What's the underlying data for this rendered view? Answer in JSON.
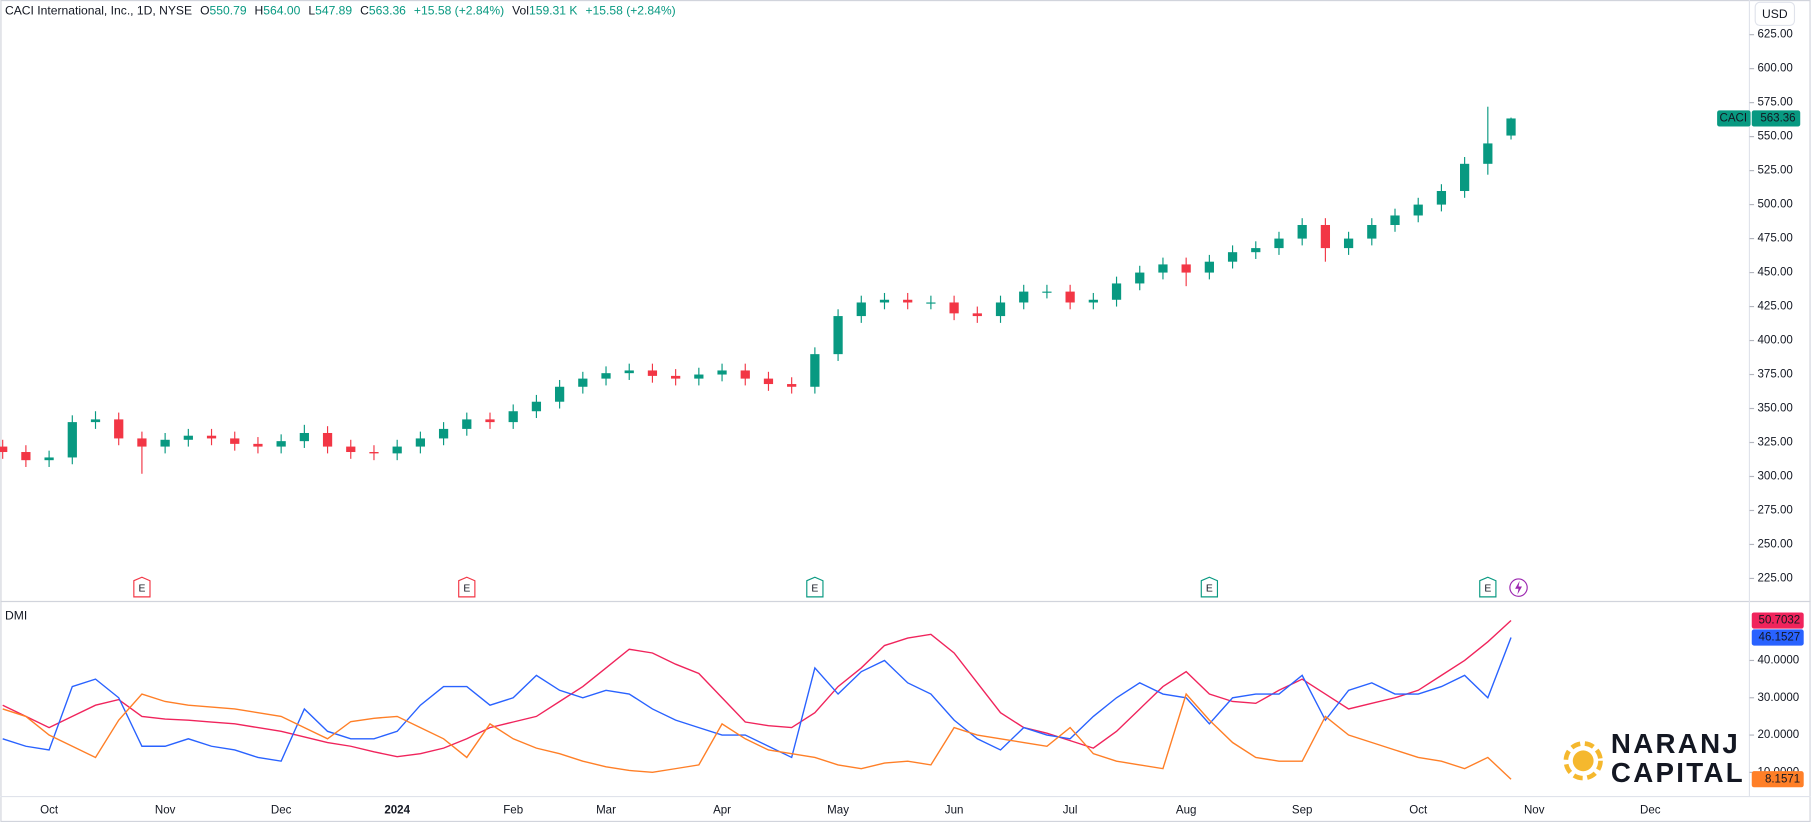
{
  "chart_data": [
    {
      "type": "candlestick",
      "title": "CACI International, Inc., 1D, NYSE",
      "quote": [
        {
          "label": "O",
          "value": "550.79"
        },
        {
          "label": "H",
          "value": "564.00"
        },
        {
          "label": "L",
          "value": "547.89"
        },
        {
          "label": "C",
          "value": "563.36"
        }
      ],
      "change": "+15.58 (+2.84%)",
      "volume_label": "Vol",
      "volume": "159.31 K",
      "volume_change": "+15.58 (+2.84%)",
      "currency": "USD",
      "symbol": "CACI",
      "up_color": "#089981",
      "down_color": "#f23645",
      "categories": [
        null,
        null,
        "Oct",
        null,
        null,
        null,
        null,
        "Nov",
        null,
        null,
        null,
        null,
        "Dec",
        null,
        null,
        null,
        null,
        "2024",
        null,
        null,
        null,
        null,
        "Feb",
        null,
        null,
        null,
        "Mar",
        null,
        null,
        null,
        null,
        "Apr",
        null,
        null,
        null,
        null,
        "May",
        null,
        null,
        null,
        null,
        "Jun",
        null,
        null,
        null,
        null,
        "Jul",
        null,
        null,
        null,
        null,
        "Aug",
        null,
        null,
        null,
        null,
        "Sep",
        null,
        null,
        null,
        null,
        "Oct",
        null,
        null,
        null,
        null,
        "Nov",
        null,
        null,
        null,
        null,
        "Dec",
        null,
        null,
        null
      ],
      "open": [
        322,
        318,
        312,
        314,
        340,
        342,
        328,
        322,
        327,
        330,
        328,
        324,
        322,
        326,
        332,
        322,
        318,
        317,
        322,
        328,
        335,
        342,
        340,
        348,
        355,
        366,
        372,
        376,
        378,
        374,
        372,
        375,
        378,
        372,
        368,
        366,
        390,
        418,
        428,
        430,
        428,
        428,
        420,
        418,
        428,
        436,
        436,
        428,
        430,
        442,
        450,
        456,
        450,
        458,
        465,
        468,
        475,
        485,
        468,
        475,
        485,
        492,
        500,
        510,
        530,
        550.79,
        null,
        null,
        null,
        null,
        null,
        null,
        null,
        null,
        null
      ],
      "high": [
        327,
        323,
        319,
        345,
        348,
        347,
        333,
        332,
        335,
        335,
        333,
        329,
        331,
        338,
        337,
        327,
        323,
        327,
        333,
        340,
        347,
        347,
        353,
        360,
        371,
        377,
        381,
        383,
        383,
        379,
        380,
        383,
        383,
        377,
        373,
        395,
        423,
        433,
        435,
        435,
        433,
        433,
        425,
        433,
        441,
        441,
        441,
        435,
        447,
        455,
        461,
        461,
        463,
        470,
        473,
        480,
        490,
        490,
        480,
        490,
        497,
        505,
        515,
        535,
        572,
        564,
        null,
        null,
        null,
        null,
        null,
        null,
        null,
        null,
        null
      ],
      "low": [
        313,
        307,
        307,
        309,
        335,
        323,
        302,
        317,
        322,
        323,
        319,
        317,
        317,
        321,
        317,
        313,
        312,
        312,
        317,
        323,
        330,
        335,
        335,
        343,
        350,
        361,
        367,
        371,
        369,
        367,
        367,
        370,
        367,
        363,
        361,
        361,
        385,
        413,
        423,
        423,
        423,
        415,
        413,
        413,
        423,
        431,
        423,
        423,
        425,
        437,
        445,
        440,
        445,
        453,
        460,
        463,
        470,
        458,
        463,
        470,
        480,
        487,
        495,
        505,
        522,
        547.89,
        null,
        null,
        null,
        null,
        null,
        null,
        null,
        null,
        null
      ],
      "close": [
        318,
        312,
        314,
        340,
        342,
        328,
        322,
        327,
        330,
        328,
        324,
        322,
        326,
        332,
        322,
        318,
        317,
        322,
        328,
        335,
        342,
        340,
        348,
        355,
        366,
        372,
        376,
        378,
        374,
        372,
        375,
        378,
        372,
        368,
        366,
        390,
        418,
        428,
        430,
        428,
        428,
        420,
        418,
        428,
        436,
        436,
        428,
        430,
        442,
        450,
        456,
        450,
        458,
        465,
        468,
        475,
        485,
        468,
        475,
        485,
        492,
        500,
        510,
        530,
        545,
        563.36,
        null,
        null,
        null,
        null,
        null,
        null,
        null,
        null,
        null
      ],
      "ylim": [
        208.9,
        650.5
      ],
      "yticks": [
        {
          "value": 225,
          "label": "225.00"
        },
        {
          "value": 250,
          "label": "250.00"
        },
        {
          "value": 275,
          "label": "275.00"
        },
        {
          "value": 300,
          "label": "300.00"
        },
        {
          "value": 325,
          "label": "325.00"
        },
        {
          "value": 350,
          "label": "350.00"
        },
        {
          "value": 375,
          "label": "375.00"
        },
        {
          "value": 400,
          "label": "400.00"
        },
        {
          "value": 425,
          "label": "425.00"
        },
        {
          "value": 450,
          "label": "450.00"
        },
        {
          "value": 475,
          "label": "475.00"
        },
        {
          "value": 500,
          "label": "500.00"
        },
        {
          "value": 525,
          "label": "525.00"
        },
        {
          "value": 550,
          "label": "550.00"
        },
        {
          "value": 575,
          "label": "575.00"
        },
        {
          "value": 600,
          "label": "600.00"
        },
        {
          "value": 625,
          "label": "625.00"
        }
      ],
      "grid": false,
      "events": {
        "x": [
          6,
          20,
          35,
          52,
          64
        ],
        "labels": [
          "E",
          "E",
          "E",
          "E",
          "E"
        ],
        "colors": [
          "#f23645",
          "#f23645",
          "#089981",
          "#089981",
          "#089981"
        ]
      }
    },
    {
      "type": "line",
      "title": "DMI",
      "series": [
        {
          "color": "#f0245c",
          "values": [
            28,
            25,
            22,
            25,
            28,
            29.5,
            25,
            24.3,
            24,
            23.5,
            23,
            22,
            21,
            19.5,
            18,
            17,
            15.5,
            14.2,
            15,
            16.5,
            19,
            22,
            23.5,
            25,
            29,
            33,
            38,
            43,
            42,
            39,
            36.5,
            30,
            23.5,
            22.5,
            22,
            26,
            33,
            38,
            44,
            46,
            47,
            42,
            34,
            26,
            22,
            20.5,
            18.5,
            16.5,
            21,
            27,
            33,
            37,
            31,
            29,
            28.5,
            32,
            35,
            31,
            27,
            28.5,
            30,
            32,
            36,
            40,
            45,
            50.7032,
            null,
            null,
            null,
            null,
            null,
            null,
            null,
            null,
            null
          ],
          "value_labels": "50.7032"
        },
        {
          "color": "#2962ff",
          "values": [
            19,
            17,
            16,
            33,
            35,
            30,
            17,
            17,
            19,
            17,
            16,
            14,
            13,
            27,
            21,
            19,
            19,
            21,
            28,
            33,
            33,
            28,
            30,
            36,
            32,
            30,
            32,
            31,
            27,
            24,
            22,
            20,
            20,
            17,
            14,
            38,
            31,
            37,
            40,
            34,
            31,
            24,
            19,
            16,
            22,
            20,
            19,
            25,
            30,
            34,
            31,
            30,
            23,
            30,
            31,
            31,
            36,
            24,
            32,
            34,
            31,
            31,
            33,
            36,
            30,
            46.1527,
            null,
            null,
            null,
            null,
            null,
            null,
            null,
            null,
            null
          ]
        },
        {
          "color": "#ff7f27",
          "values": [
            27,
            25,
            20,
            17,
            14,
            24,
            31,
            29,
            28,
            27.5,
            27,
            26,
            25,
            22,
            19,
            23.6,
            24.5,
            25,
            22,
            19,
            14,
            23,
            19,
            16.5,
            15,
            13,
            11.5,
            10.5,
            10,
            11,
            12,
            23,
            19,
            16,
            15,
            14,
            12,
            11,
            12.5,
            13,
            12,
            22,
            20,
            19,
            18,
            17,
            22,
            15,
            13,
            12,
            11,
            31,
            24,
            18,
            14,
            13,
            13,
            25,
            20,
            18,
            16,
            14,
            13,
            11,
            14,
            8.1571,
            null,
            null,
            null,
            null,
            null,
            null,
            null,
            null,
            null
          ]
        }
      ],
      "ylim": [
        3.5,
        55.5
      ],
      "yticks": [
        {
          "value": 10,
          "label": "10.0000"
        },
        {
          "value": 20,
          "label": "20.0000"
        },
        {
          "value": 30,
          "label": "30.0000"
        },
        {
          "value": 40,
          "label": "40.0000"
        }
      ]
    }
  ],
  "watermark": {
    "line1": "NARANJ",
    "line2": "CAPITAL"
  }
}
